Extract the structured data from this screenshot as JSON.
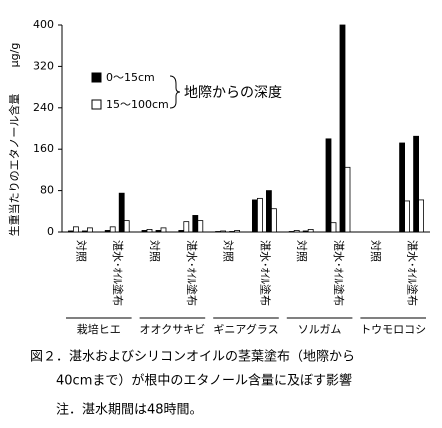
{
  "chart_data": {
    "type": "bar",
    "y_label": "生重当たりのエタノール含量",
    "y_unit": "μg/g",
    "categories": [
      "対照",
      "湛水･ｵｲﾙ塗布",
      "対照",
      "湛水･ｵｲﾙ塗布",
      "対照",
      "湛水･ｵｲﾙ塗布",
      "対照",
      "湛水･ｵｲﾙ塗布",
      "対照",
      "湛水･ｵｲﾙ塗布"
    ],
    "groups": [
      "栽培ヒエ",
      "オオクサキビ",
      "ギニアグラス",
      "ソルガム",
      "トウモロコシ"
    ],
    "series": [
      {
        "name": "0～15cm",
        "color": "#000000",
        "values": [
          2,
          3,
          3,
          3,
          1,
          62,
          1,
          180,
          0,
          172
        ]
      },
      {
        "name": "15～100cm",
        "color": "#ffffff",
        "values": [
          10,
          10,
          5,
          20,
          2,
          65,
          3,
          18,
          0,
          60
        ]
      },
      {
        "color": "#000000",
        "values": [
          2,
          75,
          3,
          32,
          1,
          80,
          2,
          400,
          0,
          185
        ]
      },
      {
        "color": "#ffffff",
        "values": [
          8,
          22,
          8,
          22,
          3,
          45,
          5,
          125,
          0,
          62
        ]
      }
    ],
    "legend_title": "地際からの深度",
    "ylim": [
      0,
      400
    ],
    "yticks": [
      0,
      80,
      160,
      240,
      320,
      400
    ],
    "caption": [
      "図２．湛水およびシリコンオイルの茎葉塗布（地際から",
      "40cmまで）が根中のエタノール含量に及ぼす影響"
    ],
    "note": "注．湛水期間は48時間。"
  }
}
